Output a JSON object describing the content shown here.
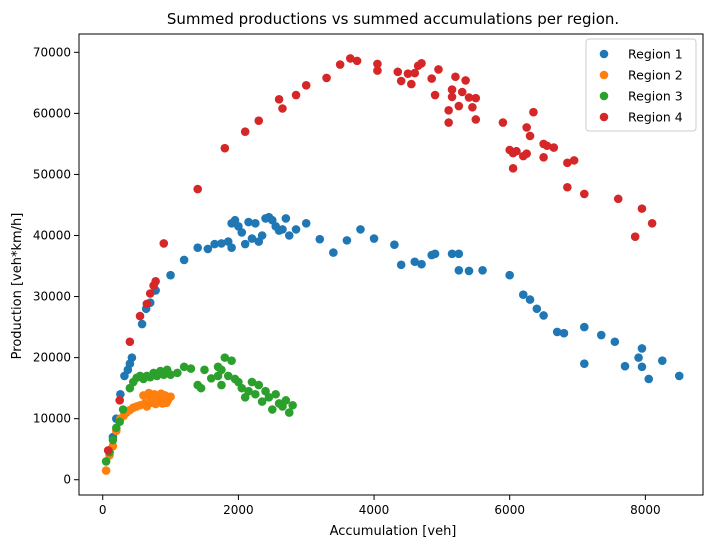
{
  "chart_data": {
    "type": "scatter",
    "title": "Summed productions vs summed accumulations per region.",
    "xlabel": "Accumulation [veh]",
    "ylabel": "Production [veh*km/h]",
    "xlim": [
      -350,
      8850
    ],
    "ylim": [
      -2500,
      73000
    ],
    "xticks": [
      0,
      2000,
      4000,
      6000,
      8000
    ],
    "yticks": [
      0,
      10000,
      20000,
      30000,
      40000,
      50000,
      60000,
      70000
    ],
    "grid": false,
    "legend_position": "top-right",
    "series": [
      {
        "name": "Region 1",
        "color": "#1f77b4",
        "points": [
          [
            100,
            4500
          ],
          [
            150,
            7000
          ],
          [
            200,
            10000
          ],
          [
            260,
            14000
          ],
          [
            320,
            17000
          ],
          [
            370,
            18000
          ],
          [
            400,
            19000
          ],
          [
            430,
            20000
          ],
          [
            580,
            25500
          ],
          [
            640,
            28000
          ],
          [
            700,
            29000
          ],
          [
            780,
            31000
          ],
          [
            1000,
            33500
          ],
          [
            1200,
            36000
          ],
          [
            1400,
            38000
          ],
          [
            1550,
            37800
          ],
          [
            1650,
            38600
          ],
          [
            1750,
            38700
          ],
          [
            1850,
            39000
          ],
          [
            1900,
            38000
          ],
          [
            1900,
            42000
          ],
          [
            1950,
            42500
          ],
          [
            2000,
            41500
          ],
          [
            2050,
            40500
          ],
          [
            2100,
            38600
          ],
          [
            2150,
            42200
          ],
          [
            2200,
            39500
          ],
          [
            2250,
            42000
          ],
          [
            2300,
            39000
          ],
          [
            2350,
            40000
          ],
          [
            2400,
            42800
          ],
          [
            2450,
            43000
          ],
          [
            2500,
            42500
          ],
          [
            2550,
            41500
          ],
          [
            2600,
            40800
          ],
          [
            2650,
            41000
          ],
          [
            2700,
            42800
          ],
          [
            2750,
            40000
          ],
          [
            2850,
            41000
          ],
          [
            3000,
            42000
          ],
          [
            3200,
            39400
          ],
          [
            3400,
            37200
          ],
          [
            3600,
            39200
          ],
          [
            3800,
            41000
          ],
          [
            4000,
            39500
          ],
          [
            4300,
            38500
          ],
          [
            4400,
            35200
          ],
          [
            4600,
            35700
          ],
          [
            4700,
            35300
          ],
          [
            4850,
            36800
          ],
          [
            4900,
            37000
          ],
          [
            5150,
            37000
          ],
          [
            5250,
            37000
          ],
          [
            5250,
            34300
          ],
          [
            5400,
            34200
          ],
          [
            5600,
            34300
          ],
          [
            6000,
            33500
          ],
          [
            6200,
            30300
          ],
          [
            6300,
            29500
          ],
          [
            6400,
            28000
          ],
          [
            6500,
            26900
          ],
          [
            6700,
            24200
          ],
          [
            6800,
            24000
          ],
          [
            7100,
            25000
          ],
          [
            7100,
            19000
          ],
          [
            7350,
            23700
          ],
          [
            7550,
            22600
          ],
          [
            7700,
            18600
          ],
          [
            7900,
            20000
          ],
          [
            7950,
            21500
          ],
          [
            7950,
            18500
          ],
          [
            8050,
            16500
          ],
          [
            8250,
            19500
          ],
          [
            8500,
            17000
          ]
        ]
      },
      {
        "name": "Region 2",
        "color": "#ff7f0e",
        "points": [
          [
            50,
            1500
          ],
          [
            100,
            4000
          ],
          [
            150,
            5500
          ],
          [
            200,
            8000
          ],
          [
            260,
            10000
          ],
          [
            310,
            10500
          ],
          [
            350,
            11000
          ],
          [
            400,
            11400
          ],
          [
            450,
            11800
          ],
          [
            500,
            12000
          ],
          [
            550,
            12200
          ],
          [
            600,
            13800
          ],
          [
            620,
            12500
          ],
          [
            650,
            12000
          ],
          [
            680,
            14200
          ],
          [
            700,
            13000
          ],
          [
            720,
            12600
          ],
          [
            740,
            13500
          ],
          [
            760,
            14000
          ],
          [
            780,
            12400
          ],
          [
            800,
            13200
          ],
          [
            820,
            13700
          ],
          [
            840,
            12800
          ],
          [
            860,
            14100
          ],
          [
            880,
            12500
          ],
          [
            900,
            13300
          ],
          [
            920,
            13800
          ],
          [
            940,
            12600
          ],
          [
            960,
            13000
          ],
          [
            1000,
            13600
          ]
        ]
      },
      {
        "name": "Region 3",
        "color": "#2ca02c",
        "points": [
          [
            50,
            3000
          ],
          [
            100,
            4500
          ],
          [
            150,
            6500
          ],
          [
            200,
            8500
          ],
          [
            250,
            9500
          ],
          [
            300,
            11500
          ],
          [
            400,
            15000
          ],
          [
            450,
            16000
          ],
          [
            500,
            16700
          ],
          [
            550,
            17000
          ],
          [
            600,
            16500
          ],
          [
            650,
            17000
          ],
          [
            700,
            16800
          ],
          [
            750,
            17500
          ],
          [
            800,
            17000
          ],
          [
            850,
            17800
          ],
          [
            900,
            17200
          ],
          [
            950,
            18000
          ],
          [
            1000,
            17200
          ],
          [
            1100,
            17500
          ],
          [
            1200,
            18500
          ],
          [
            1300,
            18200
          ],
          [
            1400,
            15500
          ],
          [
            1450,
            15000
          ],
          [
            1500,
            18000
          ],
          [
            1600,
            16600
          ],
          [
            1700,
            17000
          ],
          [
            1700,
            18500
          ],
          [
            1750,
            18000
          ],
          [
            1750,
            15500
          ],
          [
            1800,
            20000
          ],
          [
            1850,
            17000
          ],
          [
            1900,
            19500
          ],
          [
            1950,
            16500
          ],
          [
            2000,
            16000
          ],
          [
            2050,
            15000
          ],
          [
            2100,
            13500
          ],
          [
            2150,
            14500
          ],
          [
            2200,
            16000
          ],
          [
            2250,
            14000
          ],
          [
            2300,
            15500
          ],
          [
            2350,
            12800
          ],
          [
            2400,
            14500
          ],
          [
            2450,
            13500
          ],
          [
            2500,
            11500
          ],
          [
            2550,
            14000
          ],
          [
            2600,
            12500
          ],
          [
            2650,
            12000
          ],
          [
            2700,
            13000
          ],
          [
            2750,
            11000
          ],
          [
            2800,
            12200
          ]
        ]
      },
      {
        "name": "Region 4",
        "color": "#d62728",
        "points": [
          [
            80,
            4800
          ],
          [
            250,
            13000
          ],
          [
            400,
            22600
          ],
          [
            550,
            26800
          ],
          [
            650,
            28800
          ],
          [
            700,
            30500
          ],
          [
            750,
            31800
          ],
          [
            780,
            32500
          ],
          [
            900,
            38700
          ],
          [
            1400,
            47600
          ],
          [
            1800,
            54300
          ],
          [
            2100,
            57000
          ],
          [
            2300,
            58800
          ],
          [
            2600,
            62300
          ],
          [
            2650,
            60800
          ],
          [
            2850,
            63000
          ],
          [
            3000,
            64600
          ],
          [
            3300,
            65800
          ],
          [
            3500,
            68000
          ],
          [
            3650,
            69000
          ],
          [
            3750,
            68600
          ],
          [
            4050,
            68100
          ],
          [
            4050,
            67000
          ],
          [
            4350,
            66800
          ],
          [
            4400,
            65300
          ],
          [
            4500,
            66500
          ],
          [
            4550,
            64800
          ],
          [
            4600,
            66600
          ],
          [
            4650,
            67800
          ],
          [
            4700,
            68200
          ],
          [
            4850,
            65700
          ],
          [
            4900,
            63000
          ],
          [
            4950,
            67200
          ],
          [
            5150,
            63900
          ],
          [
            5150,
            62700
          ],
          [
            5100,
            60500
          ],
          [
            5100,
            58500
          ],
          [
            5200,
            66000
          ],
          [
            5250,
            61200
          ],
          [
            5300,
            63500
          ],
          [
            5350,
            65400
          ],
          [
            5400,
            62600
          ],
          [
            5450,
            61000
          ],
          [
            5500,
            59000
          ],
          [
            5500,
            62500
          ],
          [
            6000,
            54000
          ],
          [
            6050,
            53500
          ],
          [
            6050,
            51000
          ],
          [
            6100,
            53800
          ],
          [
            6200,
            53000
          ],
          [
            6250,
            53400
          ],
          [
            6300,
            56300
          ],
          [
            6350,
            60200
          ],
          [
            6500,
            52800
          ],
          [
            6550,
            54700
          ],
          [
            6650,
            54400
          ],
          [
            6850,
            47900
          ],
          [
            6850,
            51900
          ],
          [
            6950,
            52300
          ],
          [
            7100,
            46800
          ],
          [
            7600,
            46000
          ],
          [
            7850,
            39800
          ],
          [
            7950,
            44400
          ],
          [
            8100,
            42000
          ],
          [
            5900,
            58500
          ],
          [
            6250,
            57700
          ],
          [
            6500,
            55000
          ]
        ]
      }
    ]
  }
}
